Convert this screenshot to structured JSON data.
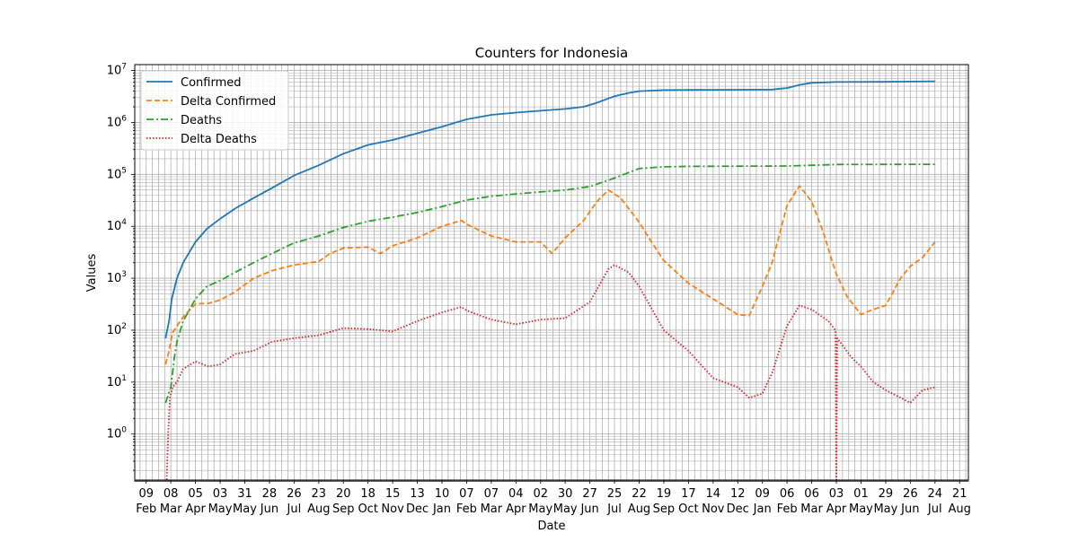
{
  "chart_data": {
    "type": "line",
    "title": "Counters for Indonesia",
    "xlabel": "Date",
    "ylabel": "Values",
    "yscale": "log",
    "ylim": [
      0.13,
      13000000
    ],
    "xlim": [
      "2020-01-27",
      "2022-08-31"
    ],
    "grid": true,
    "legend_position": "top-left",
    "x_tick_labels": [
      {
        "date": "2020-02-09",
        "day": "09",
        "month": "Feb"
      },
      {
        "date": "2020-03-08",
        "day": "08",
        "month": "Mar"
      },
      {
        "date": "2020-04-05",
        "day": "05",
        "month": "Apr"
      },
      {
        "date": "2020-05-03",
        "day": "03",
        "month": "May"
      },
      {
        "date": "2020-05-31",
        "day": "31",
        "month": "May"
      },
      {
        "date": "2020-06-28",
        "day": "28",
        "month": "Jun"
      },
      {
        "date": "2020-07-26",
        "day": "26",
        "month": "Jul"
      },
      {
        "date": "2020-08-23",
        "day": "23",
        "month": "Aug"
      },
      {
        "date": "2020-09-20",
        "day": "20",
        "month": "Sep"
      },
      {
        "date": "2020-10-18",
        "day": "18",
        "month": "Oct"
      },
      {
        "date": "2020-11-15",
        "day": "15",
        "month": "Nov"
      },
      {
        "date": "2020-12-13",
        "day": "13",
        "month": "Dec"
      },
      {
        "date": "2021-01-10",
        "day": "10",
        "month": "Jan"
      },
      {
        "date": "2021-02-07",
        "day": "07",
        "month": "Feb"
      },
      {
        "date": "2021-03-07",
        "day": "07",
        "month": "Mar"
      },
      {
        "date": "2021-04-04",
        "day": "04",
        "month": "Apr"
      },
      {
        "date": "2021-05-02",
        "day": "02",
        "month": "May"
      },
      {
        "date": "2021-05-30",
        "day": "30",
        "month": "May"
      },
      {
        "date": "2021-06-27",
        "day": "27",
        "month": "Jun"
      },
      {
        "date": "2021-07-25",
        "day": "25",
        "month": "Jul"
      },
      {
        "date": "2021-08-22",
        "day": "22",
        "month": "Aug"
      },
      {
        "date": "2021-09-19",
        "day": "19",
        "month": "Sep"
      },
      {
        "date": "2021-10-17",
        "day": "17",
        "month": "Oct"
      },
      {
        "date": "2021-11-14",
        "day": "14",
        "month": "Nov"
      },
      {
        "date": "2021-12-12",
        "day": "12",
        "month": "Dec"
      },
      {
        "date": "2022-01-09",
        "day": "09",
        "month": "Jan"
      },
      {
        "date": "2022-02-06",
        "day": "06",
        "month": "Feb"
      },
      {
        "date": "2022-03-06",
        "day": "06",
        "month": "Mar"
      },
      {
        "date": "2022-04-03",
        "day": "03",
        "month": "Apr"
      },
      {
        "date": "2022-05-01",
        "day": "01",
        "month": "May"
      },
      {
        "date": "2022-05-29",
        "day": "29",
        "month": "May"
      },
      {
        "date": "2022-06-26",
        "day": "26",
        "month": "Jun"
      },
      {
        "date": "2022-07-24",
        "day": "24",
        "month": "Jul"
      },
      {
        "date": "2022-08-21",
        "day": "21",
        "month": "Aug"
      }
    ],
    "y_tick_labels": [
      {
        "value": 1,
        "base": "10",
        "exp": "0"
      },
      {
        "value": 10,
        "base": "10",
        "exp": "1"
      },
      {
        "value": 100,
        "base": "10",
        "exp": "2"
      },
      {
        "value": 1000,
        "base": "10",
        "exp": "3"
      },
      {
        "value": 10000,
        "base": "10",
        "exp": "4"
      },
      {
        "value": 100000,
        "base": "10",
        "exp": "5"
      },
      {
        "value": 1000000,
        "base": "10",
        "exp": "6"
      },
      {
        "value": 10000000,
        "base": "10",
        "exp": "7"
      }
    ],
    "series": [
      {
        "name": "Confirmed",
        "color": "#1f77b4",
        "style": "solid",
        "points": [
          [
            "2020-03-02",
            70
          ],
          [
            "2020-03-06",
            150
          ],
          [
            "2020-03-09",
            400
          ],
          [
            "2020-03-15",
            1000
          ],
          [
            "2020-03-22",
            2000
          ],
          [
            "2020-04-05",
            5000
          ],
          [
            "2020-04-18",
            9000
          ],
          [
            "2020-05-03",
            14000
          ],
          [
            "2020-05-20",
            22000
          ],
          [
            "2020-06-10",
            35000
          ],
          [
            "2020-07-01",
            55000
          ],
          [
            "2020-07-26",
            95000
          ],
          [
            "2020-08-23",
            150000
          ],
          [
            "2020-09-20",
            250000
          ],
          [
            "2020-10-18",
            370000
          ],
          [
            "2020-11-15",
            460000
          ],
          [
            "2020-12-13",
            620000
          ],
          [
            "2021-01-10",
            830000
          ],
          [
            "2021-02-07",
            1150000
          ],
          [
            "2021-03-07",
            1400000
          ],
          [
            "2021-04-04",
            1550000
          ],
          [
            "2021-05-02",
            1680000
          ],
          [
            "2021-05-30",
            1820000
          ],
          [
            "2021-06-20",
            2000000
          ],
          [
            "2021-07-05",
            2400000
          ],
          [
            "2021-07-25",
            3200000
          ],
          [
            "2021-08-10",
            3700000
          ],
          [
            "2021-08-22",
            4000000
          ],
          [
            "2021-09-19",
            4200000
          ],
          [
            "2021-10-17",
            4240000
          ],
          [
            "2021-11-14",
            4250000
          ],
          [
            "2021-12-12",
            4260000
          ],
          [
            "2022-01-20",
            4300000
          ],
          [
            "2022-02-06",
            4600000
          ],
          [
            "2022-02-20",
            5300000
          ],
          [
            "2022-03-06",
            5800000
          ],
          [
            "2022-04-03",
            6000000
          ],
          [
            "2022-05-29",
            6050000
          ],
          [
            "2022-07-24",
            6200000
          ]
        ]
      },
      {
        "name": "Delta Confirmed",
        "color": "#ff7f0e",
        "style": "dashed",
        "points": [
          [
            "2020-03-02",
            22
          ],
          [
            "2020-03-06",
            40
          ],
          [
            "2020-03-10",
            90
          ],
          [
            "2020-03-15",
            120
          ],
          [
            "2020-03-22",
            180
          ],
          [
            "2020-03-30",
            250
          ],
          [
            "2020-04-05",
            320
          ],
          [
            "2020-04-20",
            330
          ],
          [
            "2020-05-03",
            380
          ],
          [
            "2020-05-20",
            550
          ],
          [
            "2020-06-10",
            1000
          ],
          [
            "2020-07-01",
            1400
          ],
          [
            "2020-07-26",
            1800
          ],
          [
            "2020-08-23",
            2100
          ],
          [
            "2020-09-05",
            3000
          ],
          [
            "2020-09-20",
            3800
          ],
          [
            "2020-10-18",
            4000
          ],
          [
            "2020-11-01",
            3000
          ],
          [
            "2020-11-15",
            4200
          ],
          [
            "2020-12-13",
            6000
          ],
          [
            "2021-01-10",
            10000
          ],
          [
            "2021-02-01",
            13000
          ],
          [
            "2021-02-07",
            11000
          ],
          [
            "2021-03-07",
            6500
          ],
          [
            "2021-04-04",
            5000
          ],
          [
            "2021-05-02",
            5000
          ],
          [
            "2021-05-15",
            3000
          ],
          [
            "2021-05-30",
            6000
          ],
          [
            "2021-06-20",
            13000
          ],
          [
            "2021-07-05",
            30000
          ],
          [
            "2021-07-18",
            50000
          ],
          [
            "2021-08-01",
            35000
          ],
          [
            "2021-08-22",
            12000
          ],
          [
            "2021-09-05",
            5000
          ],
          [
            "2021-09-19",
            2200
          ],
          [
            "2021-10-17",
            800
          ],
          [
            "2021-11-14",
            400
          ],
          [
            "2021-12-12",
            200
          ],
          [
            "2021-12-25",
            190
          ],
          [
            "2022-01-09",
            700
          ],
          [
            "2022-01-20",
            2000
          ],
          [
            "2022-02-06",
            25000
          ],
          [
            "2022-02-20",
            60000
          ],
          [
            "2022-03-06",
            30000
          ],
          [
            "2022-03-20",
            7000
          ],
          [
            "2022-03-28",
            2500
          ],
          [
            "2022-04-03",
            1200
          ],
          [
            "2022-04-15",
            450
          ],
          [
            "2022-05-01",
            200
          ],
          [
            "2022-05-15",
            250
          ],
          [
            "2022-05-29",
            300
          ],
          [
            "2022-06-15",
            1000
          ],
          [
            "2022-06-26",
            1700
          ],
          [
            "2022-07-10",
            2500
          ],
          [
            "2022-07-24",
            5000
          ]
        ]
      },
      {
        "name": "Deaths",
        "color": "#2ca02c",
        "style": "dashdot",
        "points": [
          [
            "2020-03-02",
            4
          ],
          [
            "2020-03-08",
            8
          ],
          [
            "2020-03-12",
            30
          ],
          [
            "2020-03-15",
            60
          ],
          [
            "2020-03-22",
            150
          ],
          [
            "2020-04-05",
            400
          ],
          [
            "2020-04-18",
            700
          ],
          [
            "2020-05-03",
            900
          ],
          [
            "2020-05-20",
            1300
          ],
          [
            "2020-06-10",
            2000
          ],
          [
            "2020-07-01",
            3000
          ],
          [
            "2020-07-26",
            4800
          ],
          [
            "2020-08-23",
            6500
          ],
          [
            "2020-09-20",
            9500
          ],
          [
            "2020-10-18",
            12500
          ],
          [
            "2020-11-15",
            15000
          ],
          [
            "2020-12-13",
            18500
          ],
          [
            "2021-01-10",
            24000
          ],
          [
            "2021-02-07",
            32000
          ],
          [
            "2021-03-07",
            38000
          ],
          [
            "2021-04-04",
            42000
          ],
          [
            "2021-05-02",
            46000
          ],
          [
            "2021-05-30",
            50000
          ],
          [
            "2021-06-27",
            58000
          ],
          [
            "2021-07-25",
            85000
          ],
          [
            "2021-08-22",
            130000
          ],
          [
            "2021-09-19",
            140000
          ],
          [
            "2021-10-17",
            143000
          ],
          [
            "2021-11-14",
            143500
          ],
          [
            "2021-12-12",
            144000
          ],
          [
            "2022-01-09",
            144200
          ],
          [
            "2022-02-06",
            145000
          ],
          [
            "2022-03-06",
            150000
          ],
          [
            "2022-04-03",
            155000
          ],
          [
            "2022-05-29",
            156000
          ],
          [
            "2022-07-24",
            156500
          ]
        ]
      },
      {
        "name": "Delta Deaths",
        "color": "#d62728",
        "style": "dotted",
        "points": [
          [
            "2020-03-03",
            0.1
          ],
          [
            "2020-03-05",
            1
          ],
          [
            "2020-03-07",
            5
          ],
          [
            "2020-03-10",
            8
          ],
          [
            "2020-03-15",
            10
          ],
          [
            "2020-03-22",
            18
          ],
          [
            "2020-04-05",
            25
          ],
          [
            "2020-04-20",
            20
          ],
          [
            "2020-05-03",
            22
          ],
          [
            "2020-05-20",
            35
          ],
          [
            "2020-06-10",
            40
          ],
          [
            "2020-07-01",
            60
          ],
          [
            "2020-07-26",
            70
          ],
          [
            "2020-08-23",
            80
          ],
          [
            "2020-09-20",
            110
          ],
          [
            "2020-10-18",
            105
          ],
          [
            "2020-11-15",
            95
          ],
          [
            "2020-12-13",
            150
          ],
          [
            "2021-01-10",
            220
          ],
          [
            "2021-02-01",
            280
          ],
          [
            "2021-02-07",
            240
          ],
          [
            "2021-03-07",
            160
          ],
          [
            "2021-04-04",
            130
          ],
          [
            "2021-05-02",
            160
          ],
          [
            "2021-05-30",
            170
          ],
          [
            "2021-06-27",
            350
          ],
          [
            "2021-07-18",
            1500
          ],
          [
            "2021-07-25",
            1800
          ],
          [
            "2021-08-10",
            1300
          ],
          [
            "2021-08-22",
            700
          ],
          [
            "2021-09-19",
            100
          ],
          [
            "2021-10-17",
            40
          ],
          [
            "2021-11-14",
            12
          ],
          [
            "2021-12-12",
            8
          ],
          [
            "2021-12-25",
            5
          ],
          [
            "2022-01-09",
            6
          ],
          [
            "2022-01-20",
            15
          ],
          [
            "2022-02-06",
            120
          ],
          [
            "2022-02-20",
            300
          ],
          [
            "2022-03-06",
            250
          ],
          [
            "2022-03-25",
            150
          ],
          [
            "2022-04-02",
            100
          ],
          [
            "2022-04-03",
            0.1
          ],
          [
            "2022-04-04",
            70
          ],
          [
            "2022-04-20",
            30
          ],
          [
            "2022-05-01",
            20
          ],
          [
            "2022-05-15",
            10
          ],
          [
            "2022-05-29",
            7
          ],
          [
            "2022-06-15",
            5
          ],
          [
            "2022-06-26",
            4
          ],
          [
            "2022-07-10",
            7
          ],
          [
            "2022-07-24",
            8
          ]
        ]
      }
    ]
  }
}
